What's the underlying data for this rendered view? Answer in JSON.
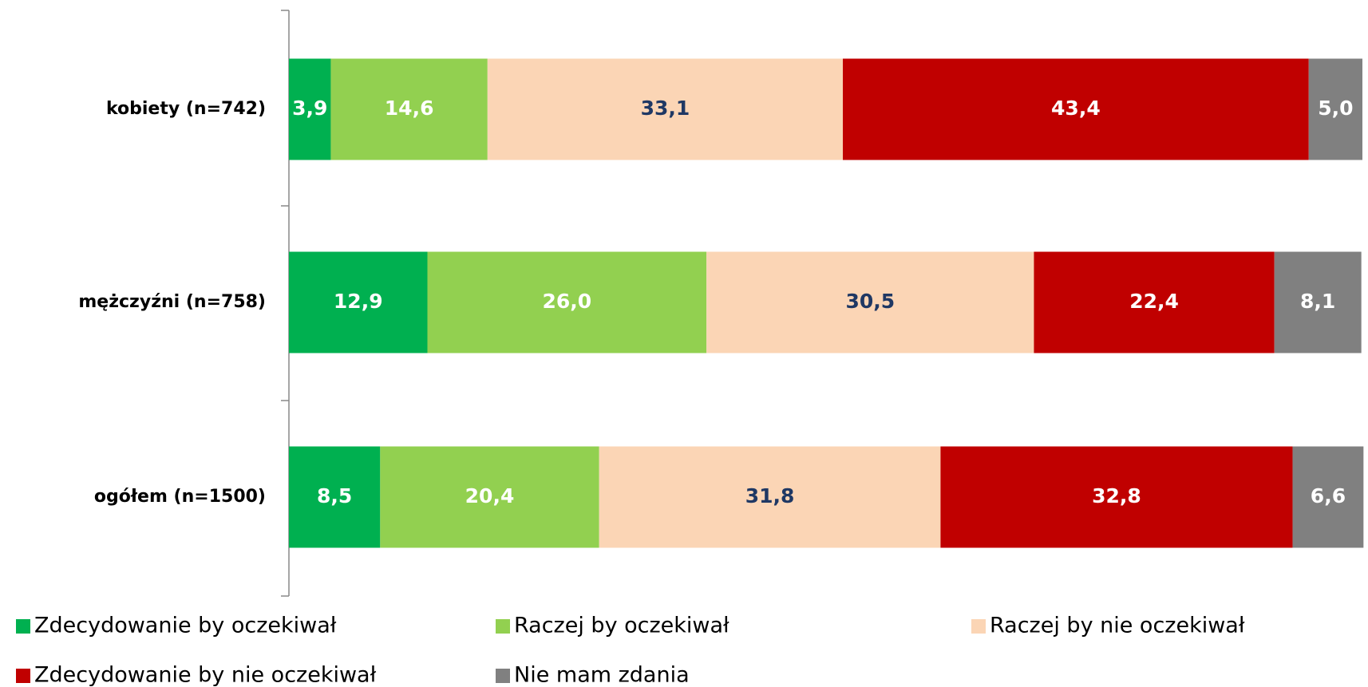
{
  "chart_data": {
    "type": "bar",
    "orientation": "horizontal",
    "stacked": true,
    "categories": [
      "kobiety (n=742)",
      "mężczyźni (n=758)",
      "ogółem (n=1500)"
    ],
    "series": [
      {
        "name": "Zdecydowanie by oczekiwał",
        "color": "#00b050",
        "label_color": "#ffffff",
        "values": [
          3.9,
          12.9,
          8.5
        ],
        "value_labels": [
          "3,9",
          "12,9",
          "8,5"
        ]
      },
      {
        "name": "Raczej by oczekiwał",
        "color": "#92d050",
        "label_color": "#ffffff",
        "values": [
          14.6,
          26.0,
          20.4
        ],
        "value_labels": [
          "14,6",
          "26,0",
          "20,4"
        ]
      },
      {
        "name": "Raczej by nie oczekiwał",
        "color": "#fbd5b5",
        "label_color": "#1f3864",
        "values": [
          33.1,
          30.5,
          31.8
        ],
        "value_labels": [
          "33,1",
          "30,5",
          "31,8"
        ]
      },
      {
        "name": "Zdecydowanie by nie oczekiwał",
        "color": "#c00000",
        "label_color": "#ffffff",
        "values": [
          43.4,
          22.4,
          32.8
        ],
        "value_labels": [
          "43,4",
          "22,4",
          "32,8"
        ]
      },
      {
        "name": "Nie mam zdania",
        "color": "#808080",
        "label_color": "#ffffff",
        "values": [
          5.0,
          8.1,
          6.6
        ],
        "value_labels": [
          "5,0",
          "8,1",
          "6,6"
        ]
      }
    ]
  }
}
